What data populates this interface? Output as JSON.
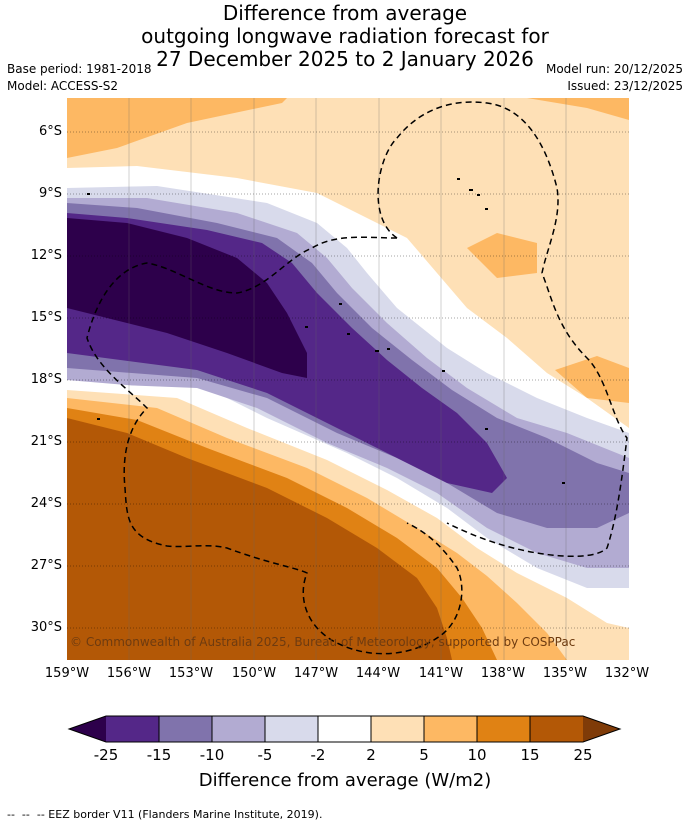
{
  "title": {
    "line1": "Difference from average",
    "line2": "outgoing longwave radiation forecast for",
    "line3": "27 December 2025 to 2 January 2026"
  },
  "meta": {
    "base_period": "Base period: 1981-2018",
    "model": "Model: ACCESS-S2",
    "model_run": "Model run: 20/12/2025",
    "issued": "Issued: 23/12/2025"
  },
  "axes": {
    "lat_labels": [
      "6°S",
      "9°S",
      "12°S",
      "15°S",
      "18°S",
      "21°S",
      "24°S",
      "27°S",
      "30°S"
    ],
    "lon_labels": [
      "159°W",
      "156°W",
      "153°W",
      "150°W",
      "147°W",
      "144°W",
      "141°W",
      "138°W",
      "135°W",
      "132°W"
    ]
  },
  "copyright": "© Commonwealth of Australia 2025, Bureau of Meteorology, supported by COSPPac",
  "colorbar": {
    "label": "Difference from average (W/m2)",
    "ticks": [
      "-25",
      "-15",
      "-10",
      "-5",
      "-2",
      "2",
      "5",
      "10",
      "15",
      "25"
    ],
    "colors": {
      "under": "#2d004b",
      "c1": "#542788",
      "c2": "#8073ac",
      "c3": "#b2abd2",
      "c4": "#d8daeb",
      "c5": "#ffffff",
      "c6": "#fee0b6",
      "c7": "#fdb863",
      "c8": "#e08214",
      "c9": "#b35806",
      "over": "#7f3b08"
    }
  },
  "footer": "--  --  -- EEZ border V11 (Flanders Marine Institute, 2019)."
}
